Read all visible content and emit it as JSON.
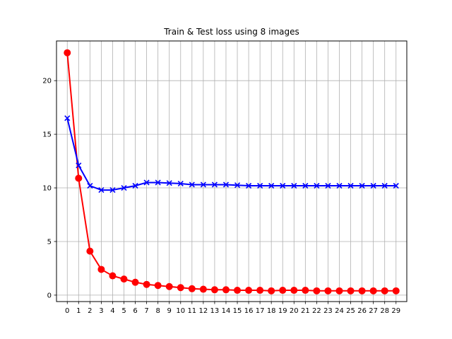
{
  "chart_data": {
    "type": "line",
    "title": "Train & Test loss using 8 images",
    "xlabel": "",
    "ylabel": "",
    "xlim": [
      -0.95,
      29.95
    ],
    "ylim": [
      -0.6,
      23.7
    ],
    "x": [
      0,
      1,
      2,
      3,
      4,
      5,
      6,
      7,
      8,
      9,
      10,
      11,
      12,
      13,
      14,
      15,
      16,
      17,
      18,
      19,
      20,
      21,
      22,
      23,
      24,
      25,
      26,
      27,
      28,
      29
    ],
    "xticks": [
      0,
      1,
      2,
      3,
      4,
      5,
      6,
      7,
      8,
      9,
      10,
      11,
      12,
      13,
      14,
      15,
      16,
      17,
      18,
      19,
      20,
      21,
      22,
      23,
      24,
      25,
      26,
      27,
      28,
      29
    ],
    "yticks": [
      0,
      5,
      10,
      15,
      20
    ],
    "grid": true,
    "series": [
      {
        "color": "#ff0000",
        "marker": "circle",
        "values": [
          22.6,
          10.9,
          4.1,
          2.4,
          1.8,
          1.5,
          1.2,
          1.0,
          0.9,
          0.8,
          0.7,
          0.6,
          0.55,
          0.5,
          0.5,
          0.45,
          0.45,
          0.45,
          0.4,
          0.45,
          0.45,
          0.45,
          0.4,
          0.4,
          0.4,
          0.4,
          0.4,
          0.4,
          0.4,
          0.4
        ]
      },
      {
        "color": "#0000ff",
        "marker": "x",
        "values": [
          16.5,
          12.1,
          10.2,
          9.8,
          9.8,
          10.0,
          10.2,
          10.5,
          10.5,
          10.45,
          10.4,
          10.3,
          10.3,
          10.3,
          10.3,
          10.25,
          10.2,
          10.2,
          10.2,
          10.2,
          10.2,
          10.2,
          10.2,
          10.2,
          10.2,
          10.2,
          10.2,
          10.2,
          10.2,
          10.2
        ]
      }
    ]
  }
}
